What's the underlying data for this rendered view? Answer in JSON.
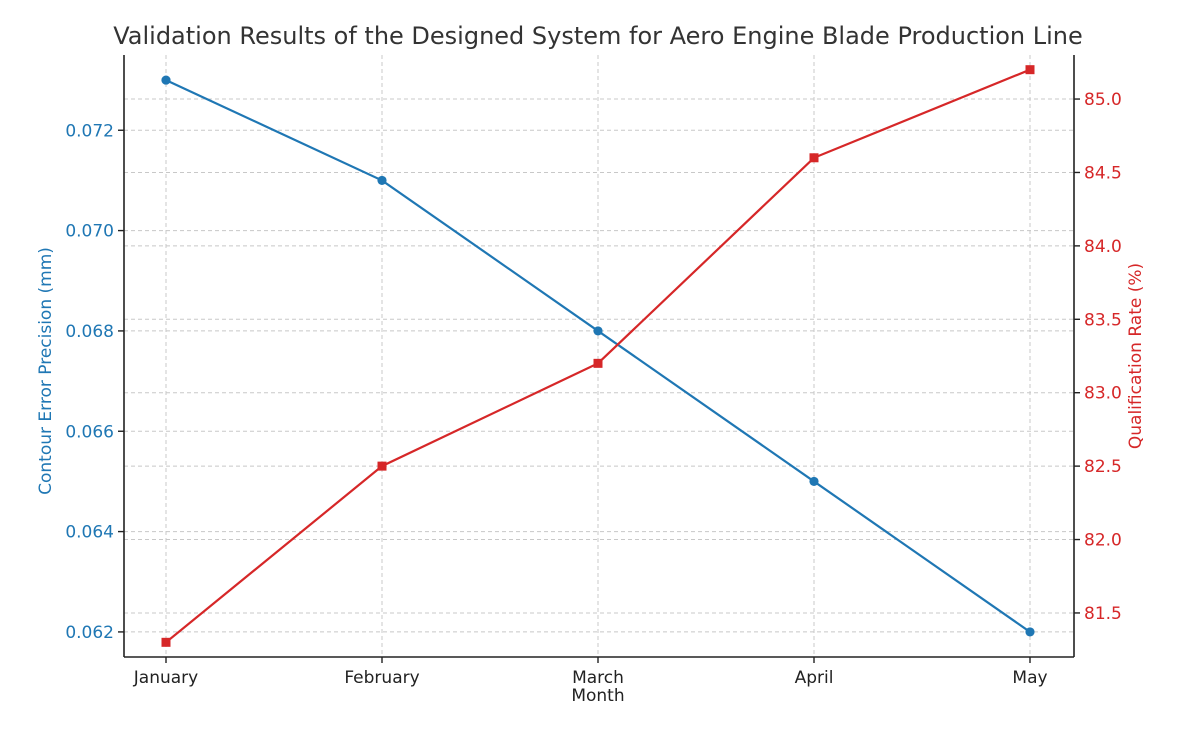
{
  "chart_data": {
    "type": "line",
    "title": "Validation Results of the Designed System for Aero Engine Blade Production Line",
    "xlabel": "Month",
    "categories": [
      "January",
      "February",
      "March",
      "April",
      "May"
    ],
    "grid": true,
    "series": [
      {
        "axis": "left",
        "ylabel": "Contour Error Precision (mm)",
        "color": "#1f77b4",
        "marker": "circle",
        "values": [
          0.073,
          0.071,
          0.068,
          0.065,
          0.062
        ],
        "ylim": [
          0.0615,
          0.0735
        ],
        "ticks": [
          0.062,
          0.064,
          0.066,
          0.068,
          0.07,
          0.072
        ],
        "tick_labels": [
          "0.062",
          "0.064",
          "0.066",
          "0.068",
          "0.070",
          "0.072"
        ]
      },
      {
        "axis": "right",
        "ylabel": "Qualification Rate (%)",
        "color": "#d62728",
        "marker": "square",
        "values": [
          81.3,
          82.5,
          83.2,
          84.6,
          85.2
        ],
        "ylim": [
          81.2,
          85.3
        ],
        "ticks": [
          81.5,
          82.0,
          82.5,
          83.0,
          83.5,
          84.0,
          84.5,
          85.0
        ],
        "tick_labels": [
          "81.5",
          "82.0",
          "82.5",
          "83.0",
          "83.5",
          "84.0",
          "84.5",
          "85.0"
        ]
      }
    ]
  }
}
